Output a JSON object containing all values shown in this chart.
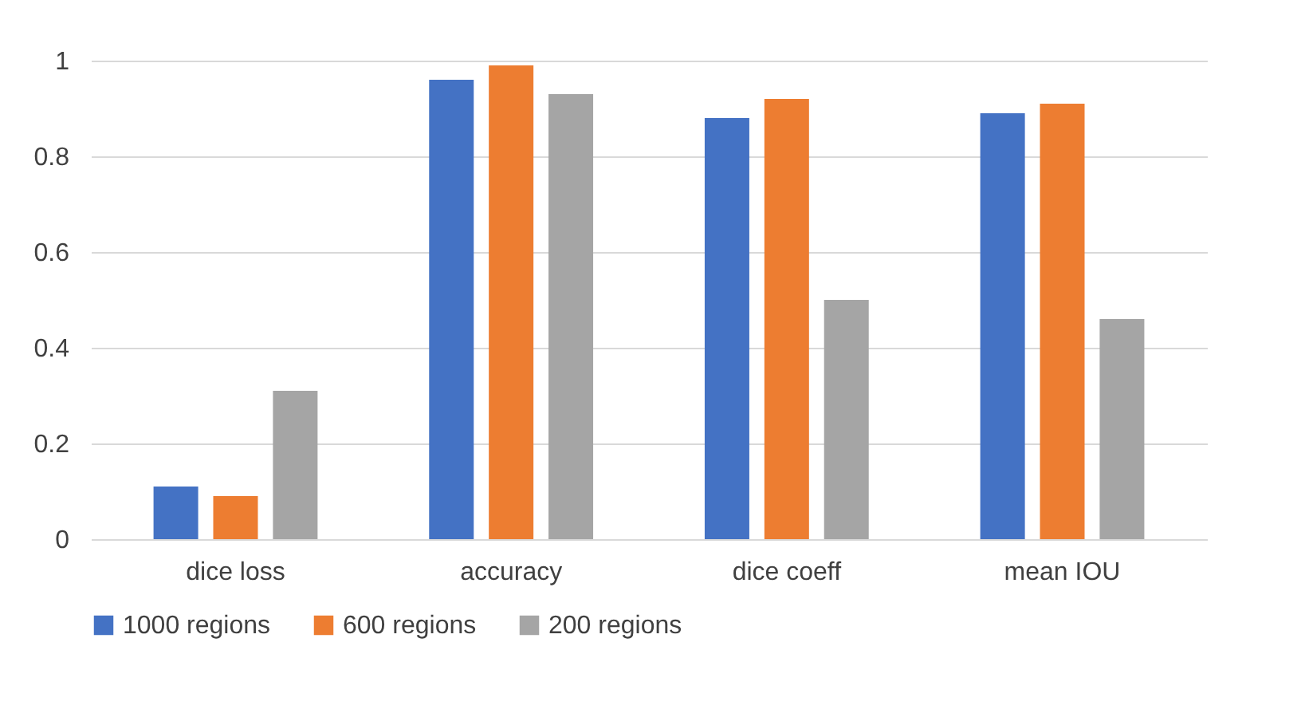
{
  "chart_data": {
    "type": "bar",
    "categories": [
      "dice loss",
      "accuracy",
      "dice coeff",
      "mean IOU"
    ],
    "series": [
      {
        "name": "1000 regions",
        "color": "#4472c4",
        "values": [
          0.11,
          0.96,
          0.88,
          0.89
        ]
      },
      {
        "name": "600 regions",
        "color": "#ed7d31",
        "values": [
          0.09,
          0.99,
          0.92,
          0.91
        ]
      },
      {
        "name": "200 regions",
        "color": "#a5a5a5",
        "values": [
          0.31,
          0.93,
          0.5,
          0.46
        ]
      }
    ],
    "ylim": [
      0,
      1
    ],
    "yticks": [
      0,
      0.2,
      0.4,
      0.6,
      0.8,
      1
    ],
    "grid": "y",
    "legend": "bottom"
  }
}
